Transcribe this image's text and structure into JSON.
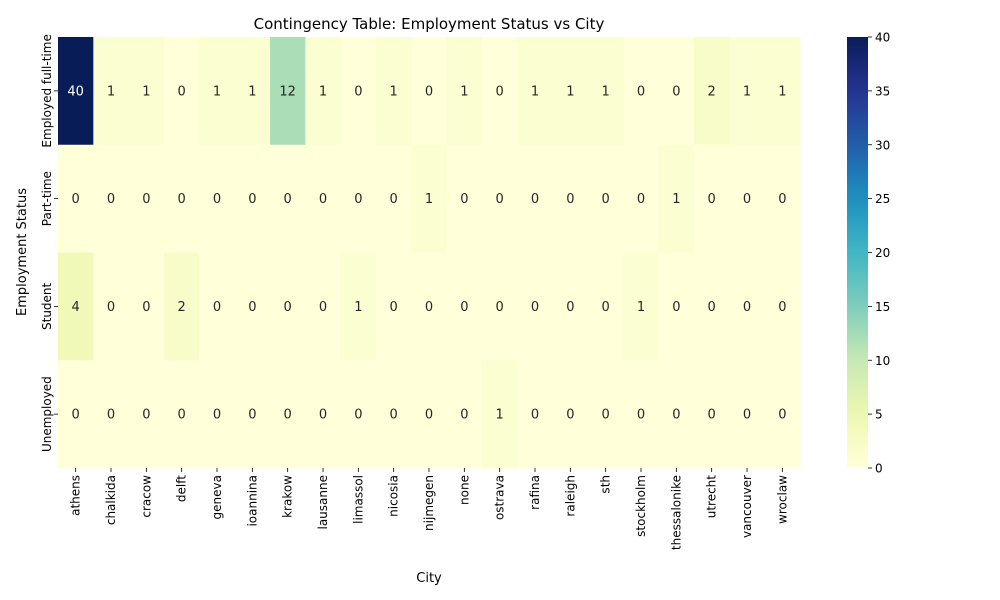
{
  "chart_data": {
    "type": "heatmap",
    "title": "Contingency Table: Employment Status vs City",
    "xlabel": "City",
    "ylabel": "Employment Status",
    "x_categories": [
      "athens",
      "chalkida",
      "cracow",
      "delft",
      "geneva",
      "ioannina",
      "krakow",
      "lausanne",
      "limassol",
      "nicosia",
      "nijmegen",
      "none",
      "ostrava",
      "rafina",
      "raleigh",
      "sth",
      "stockholm",
      "thessalonike",
      "utrecht",
      "vancouver",
      "wroclaw"
    ],
    "y_categories": [
      "Employed full-time",
      "Part-time",
      "Student",
      "Unemployed"
    ],
    "values": [
      [
        40,
        1,
        1,
        0,
        1,
        1,
        12,
        1,
        0,
        1,
        0,
        1,
        0,
        1,
        1,
        1,
        0,
        0,
        2,
        1,
        1
      ],
      [
        0,
        0,
        0,
        0,
        0,
        0,
        0,
        0,
        0,
        0,
        1,
        0,
        0,
        0,
        0,
        0,
        0,
        1,
        0,
        0,
        0
      ],
      [
        4,
        0,
        0,
        2,
        0,
        0,
        0,
        0,
        1,
        0,
        0,
        0,
        0,
        0,
        0,
        0,
        1,
        0,
        0,
        0,
        0
      ],
      [
        0,
        0,
        0,
        0,
        0,
        0,
        0,
        0,
        0,
        0,
        0,
        0,
        1,
        0,
        0,
        0,
        0,
        0,
        0,
        0,
        0
      ]
    ],
    "colormap": "YlGnBu",
    "color_range": [
      0,
      40
    ],
    "colorbar_ticks": [
      0,
      5,
      10,
      15,
      20,
      25,
      30,
      35,
      40
    ],
    "annotations": true,
    "grid": false
  }
}
